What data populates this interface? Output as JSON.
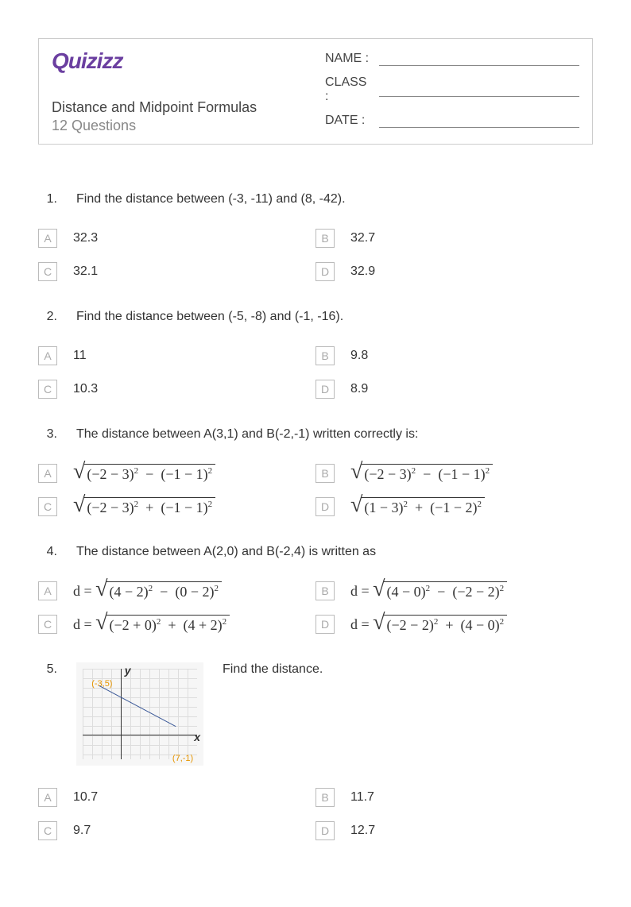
{
  "brand": {
    "name": "Quizizz",
    "color": "#6b3fa0"
  },
  "header": {
    "title": "Distance and Midpoint Formulas",
    "count": "12 Questions",
    "fields": [
      {
        "label": "NAME :"
      },
      {
        "label": "CLASS :"
      },
      {
        "label": "DATE   :"
      }
    ]
  },
  "questions": [
    {
      "n": "1.",
      "text": "Find the distance between (-3, -11) and (8, -42).",
      "opts": [
        {
          "l": "A",
          "v": "32.3"
        },
        {
          "l": "B",
          "v": "32.7"
        },
        {
          "l": "C",
          "v": "32.1"
        },
        {
          "l": "D",
          "v": "32.9"
        }
      ]
    },
    {
      "n": "2.",
      "text": "Find the distance between (-5, -8) and (-1, -16).",
      "opts": [
        {
          "l": "A",
          "v": "11"
        },
        {
          "l": "B",
          "v": "9.8"
        },
        {
          "l": "C",
          "v": "10.3"
        },
        {
          "l": "D",
          "v": "8.9"
        }
      ]
    },
    {
      "n": "3.",
      "text": "The distance between A(3,1) and B(-2,-1) written correctly is:",
      "math": true,
      "opts": [
        {
          "l": "A",
          "a": "(−2 − 3)",
          "b": "(−1 − 1)",
          "op": "−"
        },
        {
          "l": "B",
          "a": "(−2 − 3)",
          "b": "(−1 − 1)",
          "op": "−"
        },
        {
          "l": "C",
          "a": "(−2 − 3)",
          "b": "(−1 − 1)",
          "op": "+"
        },
        {
          "l": "D",
          "a": "(1 − 3)",
          "b": "(−1 − 2)",
          "op": "+"
        }
      ]
    },
    {
      "n": "4.",
      "text": "The distance between A(2,0) and B(-2,4) is written as",
      "math": true,
      "prefix": "d  = ",
      "opts": [
        {
          "l": "A",
          "a": "(4 − 2)",
          "b": "(0 − 2)",
          "op": "−"
        },
        {
          "l": "B",
          "a": "(4 − 0)",
          "b": "(−2 − 2)",
          "op": "−"
        },
        {
          "l": "C",
          "a": "(−2  + 0)",
          "b": "(4 + 2)",
          "op": "+"
        },
        {
          "l": "D",
          "a": "(−2 − 2)",
          "b": "(4 − 0)",
          "op": "+"
        }
      ]
    },
    {
      "n": "5.",
      "text": "Find the distance.",
      "img": true,
      "labels": {
        "p1": "(-3,5)",
        "p2": "(7,-1)",
        "x": "x",
        "y": "y"
      },
      "opts": [
        {
          "l": "A",
          "v": "10.7"
        },
        {
          "l": "B",
          "v": "11.7"
        },
        {
          "l": "C",
          "v": "9.7"
        },
        {
          "l": "D",
          "v": "12.7"
        }
      ]
    }
  ]
}
